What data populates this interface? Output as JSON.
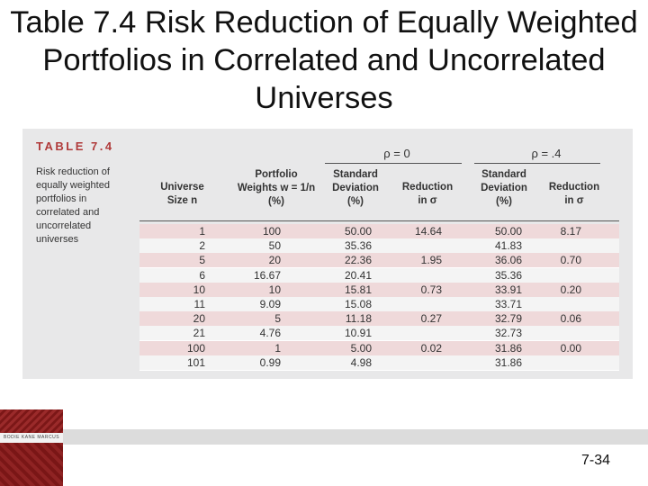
{
  "slide": {
    "title": "Table 7.4 Risk Reduction of Equally Weighted Portfolios in Correlated and Uncorrelated Universes",
    "page_number": "7-34",
    "logo_text": "BODIE KANE MARCUS"
  },
  "table": {
    "label": "TABLE 7.4",
    "caption_lines": [
      "Risk reduction of",
      "equally weighted",
      "portfolios in",
      "correlated and",
      "uncorrelated",
      "universes"
    ],
    "group_headers": [
      "ρ = 0",
      "ρ = .4"
    ],
    "column_headers": [
      [
        "Universe",
        "Size n"
      ],
      [
        "Portfolio",
        "Weights w = 1/n",
        "(%)"
      ],
      [
        "Standard",
        "Deviation",
        "(%)"
      ],
      [
        "Reduction",
        "in σ"
      ],
      [
        "Standard",
        "Deviation",
        "(%)"
      ],
      [
        "Reduction",
        "in σ"
      ]
    ],
    "rows": [
      [
        "1",
        "100",
        "50.00",
        "14.64",
        "50.00",
        "8.17"
      ],
      [
        "2",
        "50",
        "35.36",
        "",
        "41.83",
        ""
      ],
      [
        "5",
        "20",
        "22.36",
        "1.95",
        "36.06",
        "0.70"
      ],
      [
        "6",
        "16.67",
        "20.41",
        "",
        "35.36",
        ""
      ],
      [
        "10",
        "10",
        "15.81",
        "0.73",
        "33.91",
        "0.20"
      ],
      [
        "11",
        "9.09",
        "15.08",
        "",
        "33.71",
        ""
      ],
      [
        "20",
        "5",
        "11.18",
        "0.27",
        "32.79",
        "0.06"
      ],
      [
        "21",
        "4.76",
        "10.91",
        "",
        "32.73",
        ""
      ],
      [
        "100",
        "1",
        "5.00",
        "0.02",
        "31.86",
        "0.00"
      ],
      [
        "101",
        "0.99",
        "4.98",
        "",
        "31.86",
        ""
      ]
    ]
  },
  "colors": {
    "accent": "#b03a3a",
    "row_highlight": "#efd9da",
    "panel_bg": "#e8e8e9",
    "logo_bg": "#8b1d1d"
  }
}
